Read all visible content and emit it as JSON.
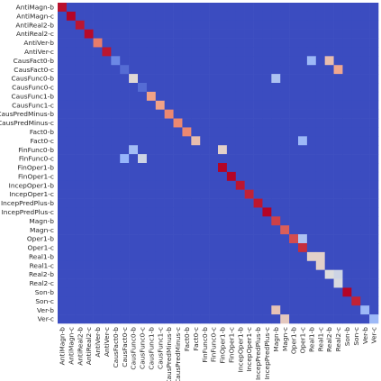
{
  "chart_data": {
    "type": "heatmap",
    "title": "",
    "xlabel": "",
    "ylabel": "",
    "labels": [
      "AntiMagn-b",
      "AntiMagn-c",
      "AntiReal2-b",
      "AntiReal2-c",
      "AntiVer-b",
      "AntiVer-c",
      "CausFact0-b",
      "CausFact0-c",
      "CausFunc0-b",
      "CausFunc0-c",
      "CausFunc1-b",
      "CausFunc1-c",
      "CausPredMinus-b",
      "CausPredMinus-c",
      "Fact0-b",
      "Fact0-c",
      "FinFunc0-b",
      "FinFunc0-c",
      "FinOper1-b",
      "FinOper1-c",
      "IncepOper1-b",
      "IncepOper1-c",
      "IncepPredPlus-b",
      "IncepPredPlus-c",
      "Magn-b",
      "Magn-c",
      "Oper1-b",
      "Oper1-c",
      "Real1-b",
      "Real1-c",
      "Real2-b",
      "Real2-c",
      "Son-b",
      "Son-c",
      "Ver-b",
      "Ver-c"
    ],
    "value_range": [
      0,
      1
    ],
    "colormap": "coolwarm",
    "diagonal_values": [
      0.98,
      1.0,
      0.97,
      0.99,
      0.8,
      0.97,
      0.15,
      0.08,
      0.52,
      0.08,
      0.72,
      0.72,
      0.78,
      0.78,
      0.78,
      0.62,
      0.0,
      0.0,
      1.0,
      1.0,
      0.97,
      0.95,
      0.97,
      1.0,
      0.9,
      0.85,
      0.88,
      0.93,
      0.55,
      0.55,
      0.5,
      0.48,
      1.0,
      0.95,
      0.3,
      0.3
    ],
    "baseline_value": 0.0,
    "off_diagonal_cells": [
      {
        "row": "FinFunc0-b",
        "col": "CausFunc0-b",
        "value": 0.32
      },
      {
        "row": "FinFunc0-c",
        "col": "CausFunc0-c",
        "value": 0.45
      },
      {
        "row": "CausFunc0-b",
        "col": "Magn-b",
        "value": 0.35
      },
      {
        "row": "CausFact0-b",
        "col": "Real1-b",
        "value": 0.3
      },
      {
        "row": "CausFact0-b",
        "col": "Real2-b",
        "value": 0.62
      },
      {
        "row": "CausFact0-c",
        "col": "Real2-c",
        "value": 0.7
      },
      {
        "row": "FinFunc0-c",
        "col": "CausFact0-c",
        "value": 0.28
      },
      {
        "row": "FinFunc0-b",
        "col": "FinOper1-b",
        "value": 0.55
      },
      {
        "row": "Ver-b",
        "col": "Magn-b",
        "value": 0.6
      },
      {
        "row": "Ver-c",
        "col": "Magn-c",
        "value": 0.58
      },
      {
        "row": "Real1-b",
        "col": "Real1-c",
        "value": 0.55
      },
      {
        "row": "Real1-c",
        "col": "Real1-c",
        "value": 0.55
      },
      {
        "row": "Real2-b",
        "col": "Real2-c",
        "value": 0.45
      },
      {
        "row": "Oper1-b",
        "col": "Oper1-c",
        "value": 0.35
      },
      {
        "row": "Fact0-c",
        "col": "Oper1-c",
        "value": 0.3
      }
    ]
  }
}
